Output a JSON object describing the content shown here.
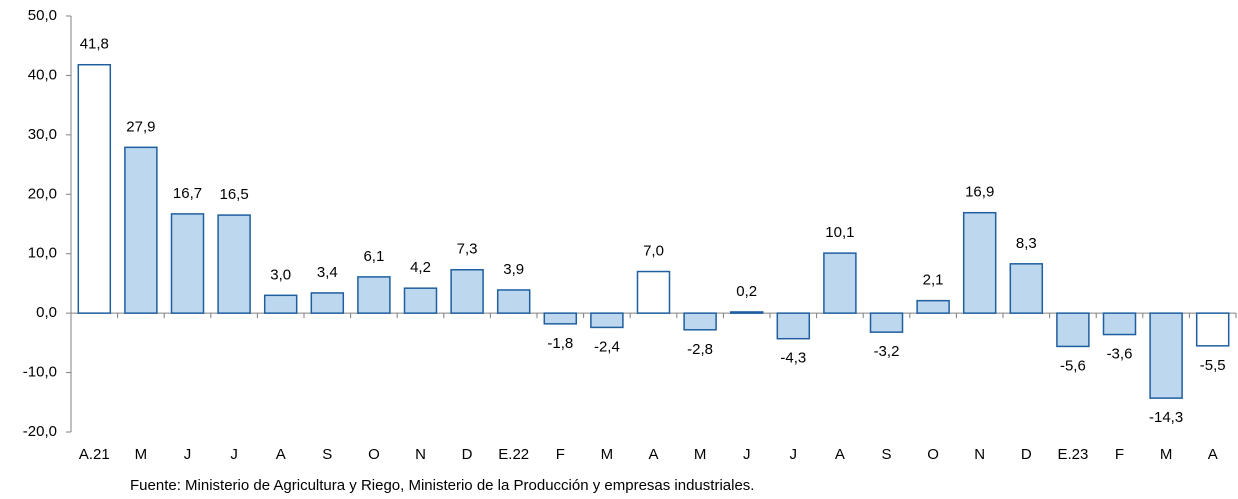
{
  "chart_data": {
    "type": "bar",
    "categories": [
      "A.21",
      "M",
      "J",
      "J",
      "A",
      "S",
      "O",
      "N",
      "D",
      "E.22",
      "F",
      "M",
      "A",
      "M",
      "J",
      "J",
      "A",
      "S",
      "O",
      "N",
      "D",
      "E.23",
      "F",
      "M",
      "A"
    ],
    "values": [
      41.8,
      27.9,
      16.7,
      16.5,
      3.0,
      3.4,
      6.1,
      4.2,
      7.3,
      3.9,
      -1.8,
      -2.4,
      7.0,
      -2.8,
      0.2,
      -4.3,
      10.1,
      -3.2,
      2.1,
      16.9,
      8.3,
      -5.6,
      -3.6,
      -14.3,
      -5.5
    ],
    "value_labels": [
      "41,8",
      "27,9",
      "16,7",
      "16,5",
      "3,0",
      "3,4",
      "6,1",
      "4,2",
      "7,3",
      "3,9",
      "-1,8",
      "-2,4",
      "7,0",
      "-2,8",
      "0,2",
      "-4,3",
      "10,1",
      "-3,2",
      "2,1",
      "16,9",
      "8,3",
      "-5,6",
      "-3,6",
      "-14,3",
      "-5,5"
    ],
    "colors": [
      "#ffffff",
      "#bdd7ee",
      "#bdd7ee",
      "#bdd7ee",
      "#bdd7ee",
      "#bdd7ee",
      "#bdd7ee",
      "#bdd7ee",
      "#bdd7ee",
      "#bdd7ee",
      "#bdd7ee",
      "#bdd7ee",
      "#ffffff",
      "#bdd7ee",
      "#bdd7ee",
      "#bdd7ee",
      "#bdd7ee",
      "#bdd7ee",
      "#bdd7ee",
      "#bdd7ee",
      "#bdd7ee",
      "#bdd7ee",
      "#bdd7ee",
      "#bdd7ee",
      "#ffffff"
    ],
    "edge_color": "#1f5f9f",
    "ylim": [
      -20,
      50
    ],
    "yticks": [
      {
        "value": -20,
        "label": "-20,0"
      },
      {
        "value": -10,
        "label": "-10,0"
      },
      {
        "value": 0,
        "label": "0,0"
      },
      {
        "value": 10,
        "label": "10,0"
      },
      {
        "value": 20,
        "label": "20,0"
      },
      {
        "value": 30,
        "label": "30,0"
      },
      {
        "value": 40,
        "label": "40,0"
      },
      {
        "value": 50,
        "label": "50,0"
      }
    ],
    "source": "Fuente: Ministerio de Agricultura y Riego, Ministerio de la Producción y empresas industriales."
  }
}
